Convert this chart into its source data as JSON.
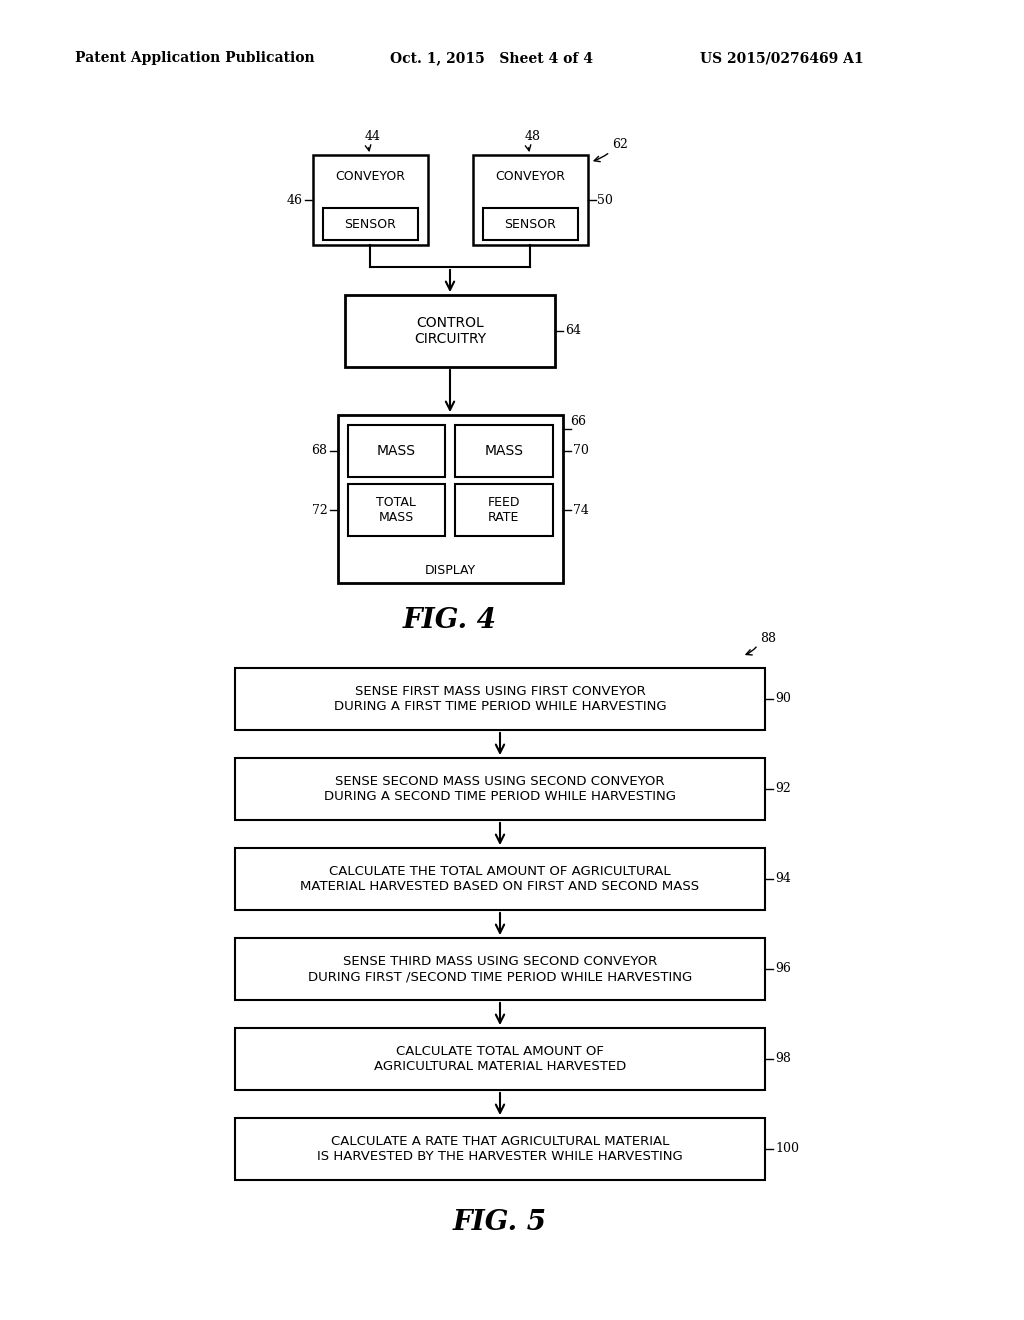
{
  "bg_color": "#ffffff",
  "header_left": "Patent Application Publication",
  "header_mid": "Oct. 1, 2015   Sheet 4 of 4",
  "header_right": "US 2015/0276469 A1",
  "fig4_label": "FIG. 4",
  "fig5_label": "FIG. 5",
  "fig4": {
    "conveyor1_label": "CONVEYOR",
    "sensor1_label": "SENSOR",
    "conveyor2_label": "CONVEYOR",
    "sensor2_label": "SENSOR",
    "control_label": "CONTROL\nCIRCUITRY",
    "display_label": "DISPLAY",
    "mass1_label": "MASS",
    "mass2_label": "MASS",
    "total_mass_label": "TOTAL\nMASS",
    "feed_rate_label": "FEED\nRATE",
    "ref_44": "44",
    "ref_46": "46",
    "ref_48": "48",
    "ref_50": "50",
    "ref_62": "62",
    "ref_64": "64",
    "ref_66": "66",
    "ref_68": "68",
    "ref_70": "70",
    "ref_72": "72",
    "ref_74": "74"
  },
  "fig5": {
    "ref_88": "88",
    "ref_90": "90",
    "ref_92": "92",
    "ref_94": "94",
    "ref_96": "96",
    "ref_98": "98",
    "ref_100": "100",
    "box1_line1": "SENSE FIRST MASS USING FIRST CONVEYOR",
    "box1_line2": "DURING A FIRST TIME PERIOD WHILE HARVESTING",
    "box2_line1": "SENSE SECOND MASS USING SECOND CONVEYOR",
    "box2_line2": "DURING A SECOND TIME PERIOD WHILE HARVESTING",
    "box3_line1": "CALCULATE THE TOTAL AMOUNT OF AGRICULTURAL",
    "box3_line2": "MATERIAL HARVESTED BASED ON FIRST AND SECOND MASS",
    "box4_line1": "SENSE THIRD MASS USING SECOND CONVEYOR",
    "box4_line2": "DURING FIRST /SECOND TIME PERIOD WHILE HARVESTING",
    "box5_line1": "CALCULATE TOTAL AMOUNT OF",
    "box5_line2": "AGRICULTURAL MATERIAL HARVESTED",
    "box6_line1": "CALCULATE A RATE THAT AGRICULTURAL MATERIAL",
    "box6_line2": "IS HARVESTED BY THE HARVESTER WHILE HARVESTING"
  }
}
